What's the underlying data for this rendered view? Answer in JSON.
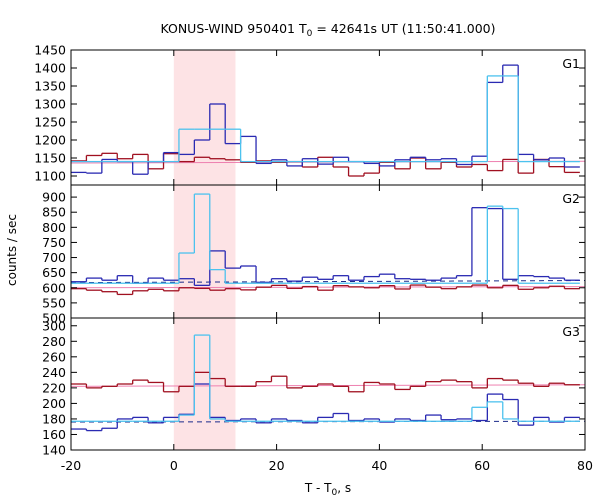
{
  "chart_data": {
    "type": "line",
    "title_main": "KONUS-WIND 950401 T",
    "title_sub": "0",
    "title_rest": " = 42641s UT (11:50:41.000)",
    "xlabel_main": "T - T",
    "xlabel_sub": "0",
    "xlabel_rest": ", s",
    "ylabel": "counts / sec",
    "xlim": [
      -20,
      80
    ],
    "xticks": [
      -20,
      0,
      20,
      40,
      60,
      80
    ],
    "shade_interval": [
      0,
      12
    ],
    "colors": {
      "count": "#2a2ab2",
      "fit": "#4cc2ee",
      "bkg": "#a01020",
      "bkg_level": "#ee80b0",
      "bkg_dashed": "#1a2a8a",
      "shade": "#fde3e5"
    },
    "panels": [
      {
        "name": "G1",
        "ylim": [
          1075,
          1450
        ],
        "yticks": [
          1100,
          1150,
          1200,
          1250,
          1300,
          1350,
          1400,
          1450
        ],
        "ytick_labels": [
          "1100",
          "1150",
          "1200",
          "1250",
          "1300",
          "1350",
          "1400",
          "1450"
        ],
        "edges": [
          -20,
          -17,
          -14,
          -11,
          -8,
          -5,
          -2,
          1,
          4,
          7,
          10,
          13,
          16,
          19,
          22,
          25,
          28,
          31,
          34,
          37,
          40,
          43,
          46,
          49,
          52,
          55,
          58,
          61,
          64,
          67,
          70,
          73,
          76,
          79
        ],
        "series": [
          {
            "key": "bkg",
            "color": "#a01020",
            "values": [
              1142,
              1157,
              1163,
              1148,
              1160,
              1120,
              1162,
              1140,
              1152,
              1148,
              1145,
              1138,
              1142,
              1138,
              1140,
              1125,
              1152,
              1125,
              1100,
              1108,
              1138,
              1120,
              1150,
              1120,
              1138,
              1125,
              1132,
              1115,
              1146,
              1108,
              1146,
              1126,
              1110
            ]
          },
          {
            "key": "count",
            "color": "#2a2ab2",
            "values": [
              1110,
              1108,
              1146,
              1140,
              1105,
              1140,
              1165,
              1160,
              1200,
              1300,
              1190,
              1210,
              1135,
              1145,
              1128,
              1148,
              1133,
              1152,
              1140,
              1135,
              1128,
              1145,
              1152,
              1145,
              1148,
              1132,
              1155,
              1360,
              1408,
              1160,
              1145,
              1150,
              1125
            ]
          },
          {
            "key": "fit",
            "color": "#4cc2ee",
            "values": [
              1140,
              1140,
              1140,
              1140,
              1140,
              1140,
              1140,
              1230,
              1230,
              1230,
              1230,
              1140,
              1140,
              1140,
              1140,
              1140,
              1140,
              1140,
              1140,
              1140,
              1140,
              1140,
              1140,
              1140,
              1140,
              1140,
              1140,
              1378,
              1378,
              1140,
              1140,
              1140,
              1140
            ]
          }
        ],
        "levels": [
          {
            "key": "bkg_level",
            "color": "#ee80b0",
            "y1": 1136,
            "y2": 1141,
            "dashed": false
          }
        ]
      },
      {
        "name": "G2",
        "ylim": [
          500,
          940
        ],
        "yticks": [
          500,
          550,
          600,
          650,
          700,
          750,
          800,
          850,
          900
        ],
        "ytick_labels": [
          "500",
          "550",
          "600",
          "650",
          "700",
          "750",
          "800",
          "850",
          "900"
        ],
        "edges": [
          -20,
          -17,
          -14,
          -11,
          -8,
          -5,
          -2,
          1,
          4,
          7,
          10,
          13,
          16,
          19,
          22,
          25,
          28,
          31,
          34,
          37,
          40,
          43,
          46,
          49,
          52,
          55,
          58,
          61,
          64,
          67,
          70,
          73,
          76,
          79
        ],
        "series": [
          {
            "key": "bkg",
            "color": "#a01020",
            "values": [
              597,
              592,
              587,
              578,
              590,
              595,
              590,
              600,
              598,
              592,
              597,
              593,
              602,
              608,
              598,
              604,
              592,
              607,
              603,
              600,
              607,
              596,
              609,
              602,
              597,
              603,
              609,
              600,
              608,
              595,
              600,
              605,
              597
            ]
          },
          {
            "key": "count",
            "color": "#2a2ab2",
            "values": [
              620,
              632,
              625,
              640,
              615,
              632,
              625,
              630,
              608,
              722,
              665,
              672,
              618,
              630,
              622,
              635,
              628,
              640,
              625,
              637,
              645,
              630,
              628,
              625,
              632,
              640,
              865,
              862,
              628,
              640,
              637,
              632,
              625
            ]
          },
          {
            "key": "fit",
            "color": "#4cc2ee",
            "values": [
              615,
              615,
              615,
              615,
              615,
              615,
              615,
              715,
              910,
              660,
              615,
              615,
              615,
              615,
              615,
              615,
              615,
              615,
              615,
              615,
              615,
              615,
              615,
              615,
              615,
              615,
              615,
              870,
              862,
              615,
              615,
              615,
              615
            ]
          }
        ],
        "levels": [
          {
            "key": "bkg_level",
            "color": "#ee80b0",
            "y1": 600,
            "y2": 604,
            "dashed": false
          },
          {
            "key": "bkg_dashed",
            "color": "#1a2a8a",
            "y1": 617,
            "y2": 624,
            "dashed": true
          }
        ]
      },
      {
        "name": "G3",
        "ylim": [
          140,
          310
        ],
        "yticks": [
          140,
          160,
          180,
          200,
          220,
          240,
          260,
          280,
          300
        ],
        "ytick_labels": [
          "140",
          "160",
          "180",
          "200",
          "220",
          "240",
          "260",
          "280",
          "300"
        ],
        "edges": [
          -20,
          -17,
          -14,
          -11,
          -8,
          -5,
          -2,
          1,
          4,
          7,
          10,
          13,
          16,
          19,
          22,
          25,
          28,
          31,
          34,
          37,
          40,
          43,
          46,
          49,
          52,
          55,
          58,
          61,
          64,
          67,
          70,
          73,
          76,
          79
        ],
        "series": [
          {
            "key": "bkg",
            "color": "#a01020",
            "values": [
              225,
              220,
              222,
              225,
              230,
              227,
              215,
              222,
              240,
              232,
              222,
              222,
              228,
              235,
              220,
              222,
              225,
              222,
              215,
              227,
              225,
              218,
              222,
              228,
              230,
              228,
              220,
              232,
              230,
              226,
              222,
              226,
              224
            ]
          },
          {
            "key": "count",
            "color": "#2a2ab2",
            "values": [
              167,
              165,
              168,
              180,
              182,
              175,
              182,
              186,
              225,
              182,
              178,
              180,
              175,
              180,
              178,
              175,
              182,
              187,
              178,
              180,
              176,
              180,
              178,
              185,
              179,
              180,
              178,
              212,
              205,
              172,
              182,
              176,
              182
            ]
          },
          {
            "key": "fit",
            "color": "#4cc2ee",
            "values": [
              177,
              177,
              177,
              177,
              177,
              177,
              177,
              185,
              288,
              180,
              177,
              177,
              177,
              177,
              177,
              177,
              177,
              177,
              177,
              177,
              177,
              177,
              177,
              177,
              177,
              177,
              195,
              202,
              180,
              177,
              177,
              177,
              177
            ]
          }
        ],
        "levels": [
          {
            "key": "bkg_level",
            "color": "#ee80b0",
            "y1": 222,
            "y2": 224,
            "dashed": false
          },
          {
            "key": "bkg_dashed",
            "color": "#1a2a8a",
            "y1": 176,
            "y2": 177,
            "dashed": true
          }
        ]
      }
    ]
  }
}
